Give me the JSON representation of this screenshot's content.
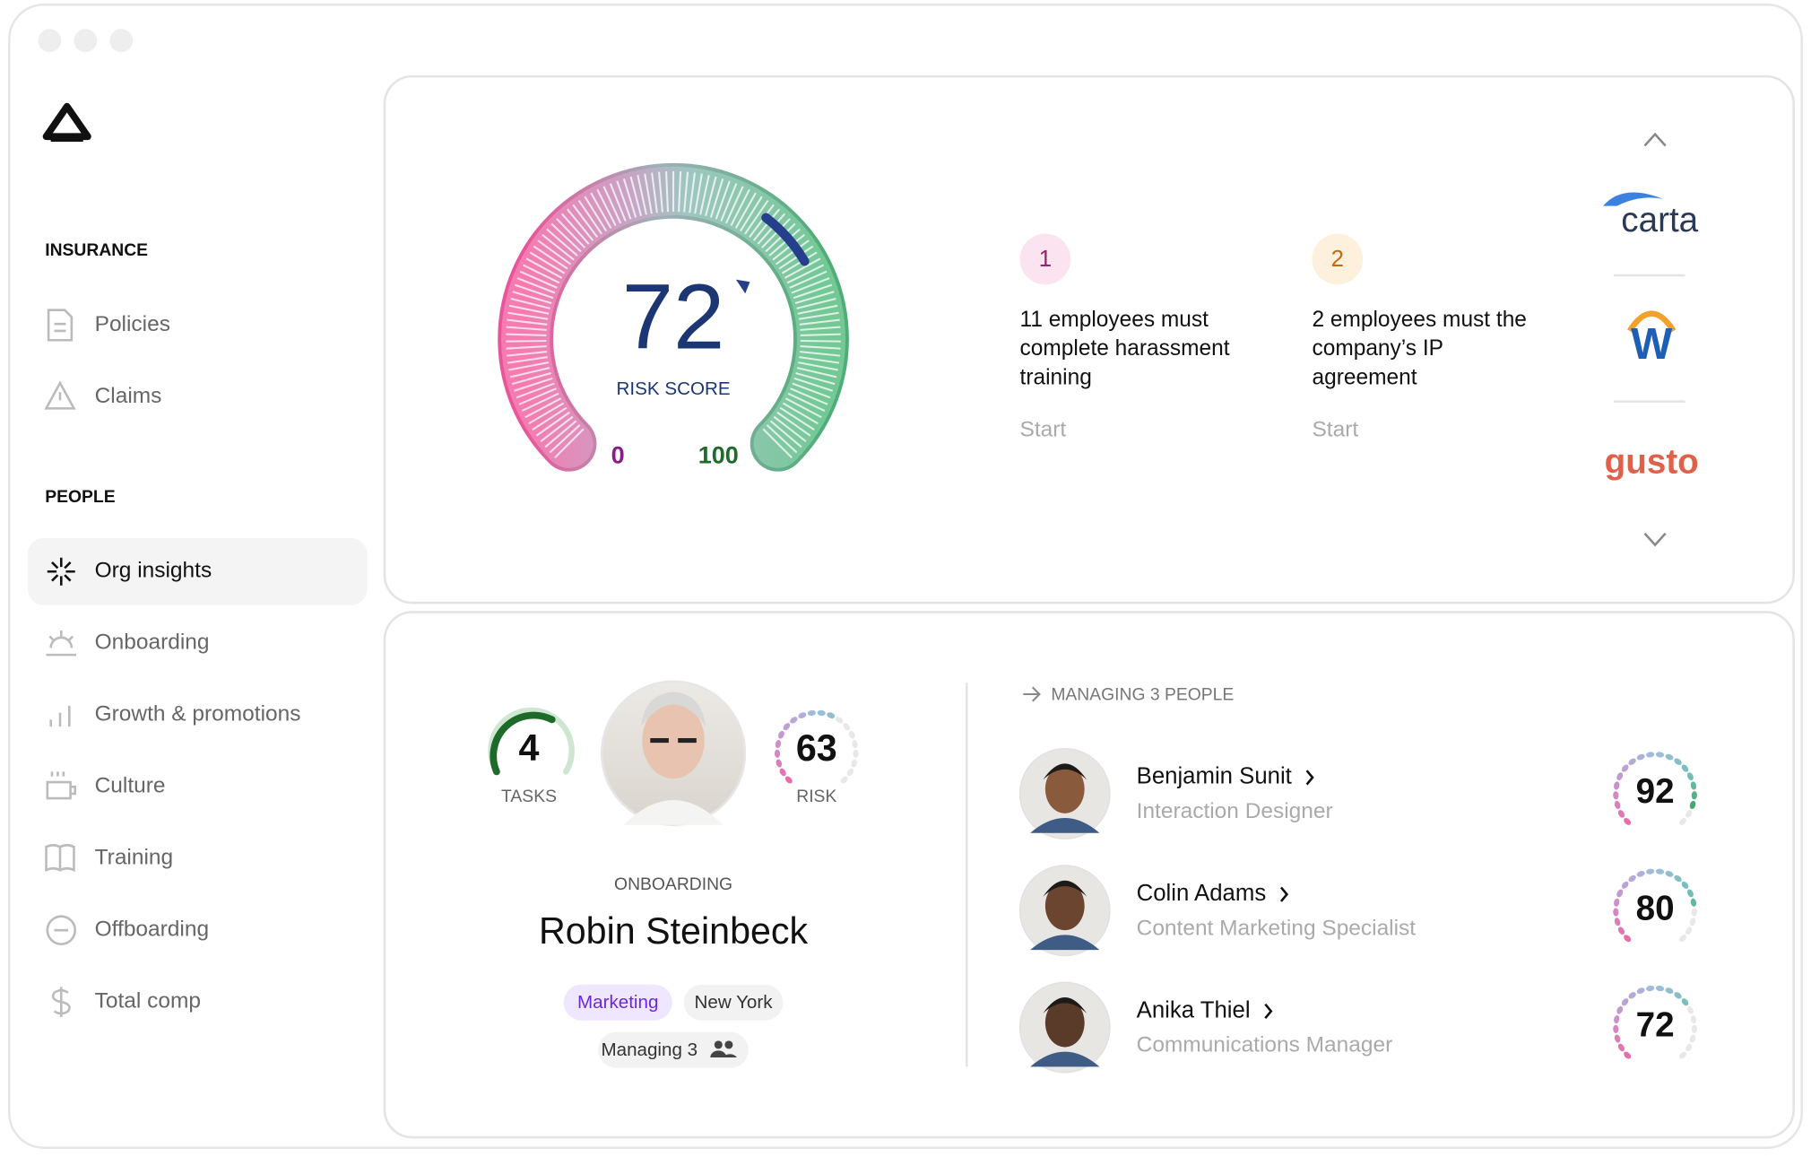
{
  "sidebar": {
    "sections": [
      {
        "title": "INSURANCE",
        "items": [
          "Policies",
          "Claims"
        ]
      },
      {
        "title": "PEOPLE",
        "items": [
          "Org insights",
          "Onboarding",
          "Growth & promotions",
          "Culture",
          "Training",
          "Offboarding",
          "Total comp"
        ]
      }
    ]
  },
  "risk_gauge": {
    "value": 72,
    "label": "RISK SCORE",
    "min": 0,
    "max": 100
  },
  "tasks": [
    {
      "number": "1",
      "text": "11 employees must complete harassment training",
      "action": "Start"
    },
    {
      "number": "2",
      "text": "2 employees must the company’s IP agreement",
      "action": "Start"
    }
  ],
  "integrations": [
    "carta",
    "W",
    "gusto"
  ],
  "profile": {
    "tasks": {
      "value": 4,
      "label": "TASKS"
    },
    "risk": {
      "value": 63,
      "label": "RISK"
    },
    "status": "ONBOARDING",
    "name": "Robin Steinbeck",
    "tags": [
      "Marketing",
      "New York"
    ],
    "managing": "Managing 3"
  },
  "reports": {
    "title": "MANAGING 3 PEOPLE",
    "people": [
      {
        "name": "Benjamin Sunit",
        "title": "Interaction Designer",
        "score": 92
      },
      {
        "name": "Colin Adams",
        "title": "Content Marketing Specialist",
        "score": 80
      },
      {
        "name": "Anika Thiel",
        "title": "Communications Manager",
        "score": 72
      }
    ]
  }
}
